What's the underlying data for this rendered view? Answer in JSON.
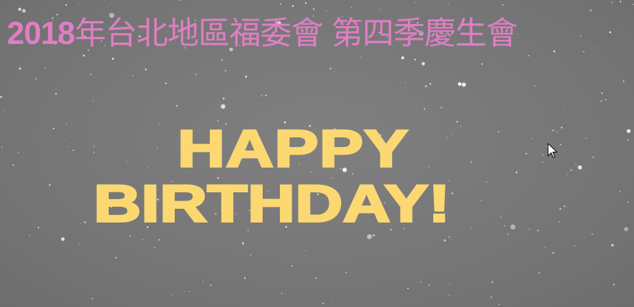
{
  "slide": {
    "title_year": "2018",
    "title_text": "年台北地區福委會 第四季慶生會",
    "greeting_line1": "HAPPY",
    "greeting_line2": "BIRTHDAY!"
  },
  "colors": {
    "background": "#777778",
    "title": "#e07ec4",
    "greeting": "#fcd872",
    "stars": "#f2f2f2"
  },
  "icons": {
    "cursor": "mouse-pointer-arrow",
    "background": "starfield"
  }
}
